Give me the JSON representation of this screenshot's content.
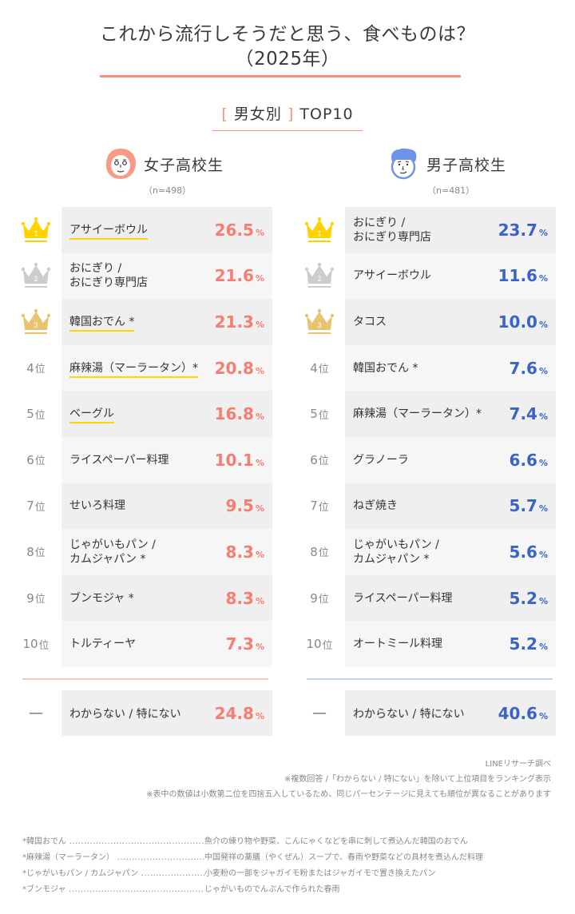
{
  "header": {
    "title_line1": "これから流行しそうだと思う、食べものは？",
    "title_line2": "（2025年）",
    "section_bracket_open": "[",
    "section_label": "男女別",
    "section_bracket_close": "]",
    "section_suffix": "TOP10"
  },
  "colors": {
    "accent_pink": "#f58f84",
    "girl_value": "#f57d72",
    "boy_value": "#3a63c8",
    "underline_yellow": "#ffd700",
    "crown_gold": "#ffd200",
    "crown_silver": "#cccccc",
    "crown_bronze": "#e9c46f",
    "divider_blue": "#c5d3f0",
    "divider_pink": "#f9c5c0"
  },
  "rank_suffix": "位",
  "percent_sign": "%",
  "girls": {
    "label": "女子高校生",
    "n": "（n=498）",
    "items": [
      {
        "rank": "1",
        "name": "アサイーボウル",
        "value": "26.5",
        "underlined": true
      },
      {
        "rank": "2",
        "name": "おにぎり / おにぎり専門店",
        "value": "21.6",
        "underlined": false
      },
      {
        "rank": "3",
        "name": "韓国おでん *",
        "value": "21.3",
        "underlined": true
      },
      {
        "rank": "4",
        "name": "麻辣湯（マーラータン）*",
        "value": "20.8",
        "underlined": true
      },
      {
        "rank": "5",
        "name": "ベーグル",
        "value": "16.8",
        "underlined": true
      },
      {
        "rank": "6",
        "name": "ライスペーパー料理",
        "value": "10.1",
        "underlined": false
      },
      {
        "rank": "7",
        "name": "せいろ料理",
        "value": "9.5",
        "underlined": false
      },
      {
        "rank": "8",
        "name": "じゃがいもパン / カムジャパン *",
        "value": "8.3",
        "underlined": false
      },
      {
        "rank": "9",
        "name": "ブンモジャ *",
        "value": "8.3",
        "underlined": false
      },
      {
        "rank": "10",
        "name": "トルティーヤ",
        "value": "7.3",
        "underlined": false
      }
    ],
    "other": {
      "rank": "—",
      "name": "わからない / 特にない",
      "value": "24.8"
    }
  },
  "boys": {
    "label": "男子高校生",
    "n": "（n=481）",
    "items": [
      {
        "rank": "1",
        "name": "おにぎり / おにぎり専門店",
        "value": "23.7"
      },
      {
        "rank": "2",
        "name": "アサイーボウル",
        "value": "11.6"
      },
      {
        "rank": "3",
        "name": "タコス",
        "value": "10.0"
      },
      {
        "rank": "4",
        "name": "韓国おでん *",
        "value": "7.6"
      },
      {
        "rank": "5",
        "name": "麻辣湯（マーラータン）*",
        "value": "7.4"
      },
      {
        "rank": "6",
        "name": "グラノーラ",
        "value": "6.6"
      },
      {
        "rank": "7",
        "name": "ねぎ焼き",
        "value": "5.7"
      },
      {
        "rank": "8",
        "name": "じゃがいもパン / カムジャパン *",
        "value": "5.6"
      },
      {
        "rank": "9",
        "name": "ライスペーパー料理",
        "value": "5.2"
      },
      {
        "rank": "10",
        "name": "オートミール料理",
        "value": "5.2"
      }
    ],
    "other": {
      "rank": "—",
      "name": "わからない / 特にない",
      "value": "40.6"
    }
  },
  "notes": [
    "LINEリサーチ調べ",
    "※複数回答 /「わからない / 特にない」を除いて上位項目をランキング表示",
    "※表中の数値は小数第二位を四捨五入しているため、同じパーセンテージに見えても順位が異なることがあります"
  ],
  "definitions": [
    {
      "term": "*韓国おでん",
      "desc": "魚介の練り物や野菜、こんにゃくなどを串に刺して煮込んだ韓国のおでん"
    },
    {
      "term": "*麻辣湯（マーラータン）",
      "desc": "中国発祥の薬膳（やくぜん）スープで、春雨や野菜などの具材を煮込んだ料理"
    },
    {
      "term": "*じゃがいもパン / カムジャパン",
      "desc": "小麦粉の一部をジャガイモ粉またはジャガイモで置き換えたパン"
    },
    {
      "term": "*ブンモジャ",
      "desc": "じゃがいものでんぷんで作られた春雨"
    }
  ],
  "chart_data": {
    "type": "table",
    "title": "これから流行しそうだと思う、食べものは？（2025年）",
    "subtitle": "男女別 TOP10",
    "unit": "%",
    "series": [
      {
        "name": "女子高校生 (n=498)",
        "categories": [
          "アサイーボウル",
          "おにぎり / おにぎり専門店",
          "韓国おでん",
          "麻辣湯（マーラータン）",
          "ベーグル",
          "ライスペーパー料理",
          "せいろ料理",
          "じゃがいもパン / カムジャパン",
          "ブンモジャ",
          "トルティーヤ",
          "わからない / 特にない"
        ],
        "values": [
          26.5,
          21.6,
          21.3,
          20.8,
          16.8,
          10.1,
          9.5,
          8.3,
          8.3,
          7.3,
          24.8
        ]
      },
      {
        "name": "男子高校生 (n=481)",
        "categories": [
          "おにぎり / おにぎり専門店",
          "アサイーボウル",
          "タコス",
          "韓国おでん",
          "麻辣湯（マーラータン）",
          "グラノーラ",
          "ねぎ焼き",
          "じゃがいもパン / カムジャパン",
          "ライスペーパー料理",
          "オートミール料理",
          "わからない / 特にない"
        ],
        "values": [
          23.7,
          11.6,
          10.0,
          7.6,
          7.4,
          6.6,
          5.7,
          5.6,
          5.2,
          5.2,
          40.6
        ]
      }
    ],
    "source": "LINEリサーチ調べ"
  }
}
